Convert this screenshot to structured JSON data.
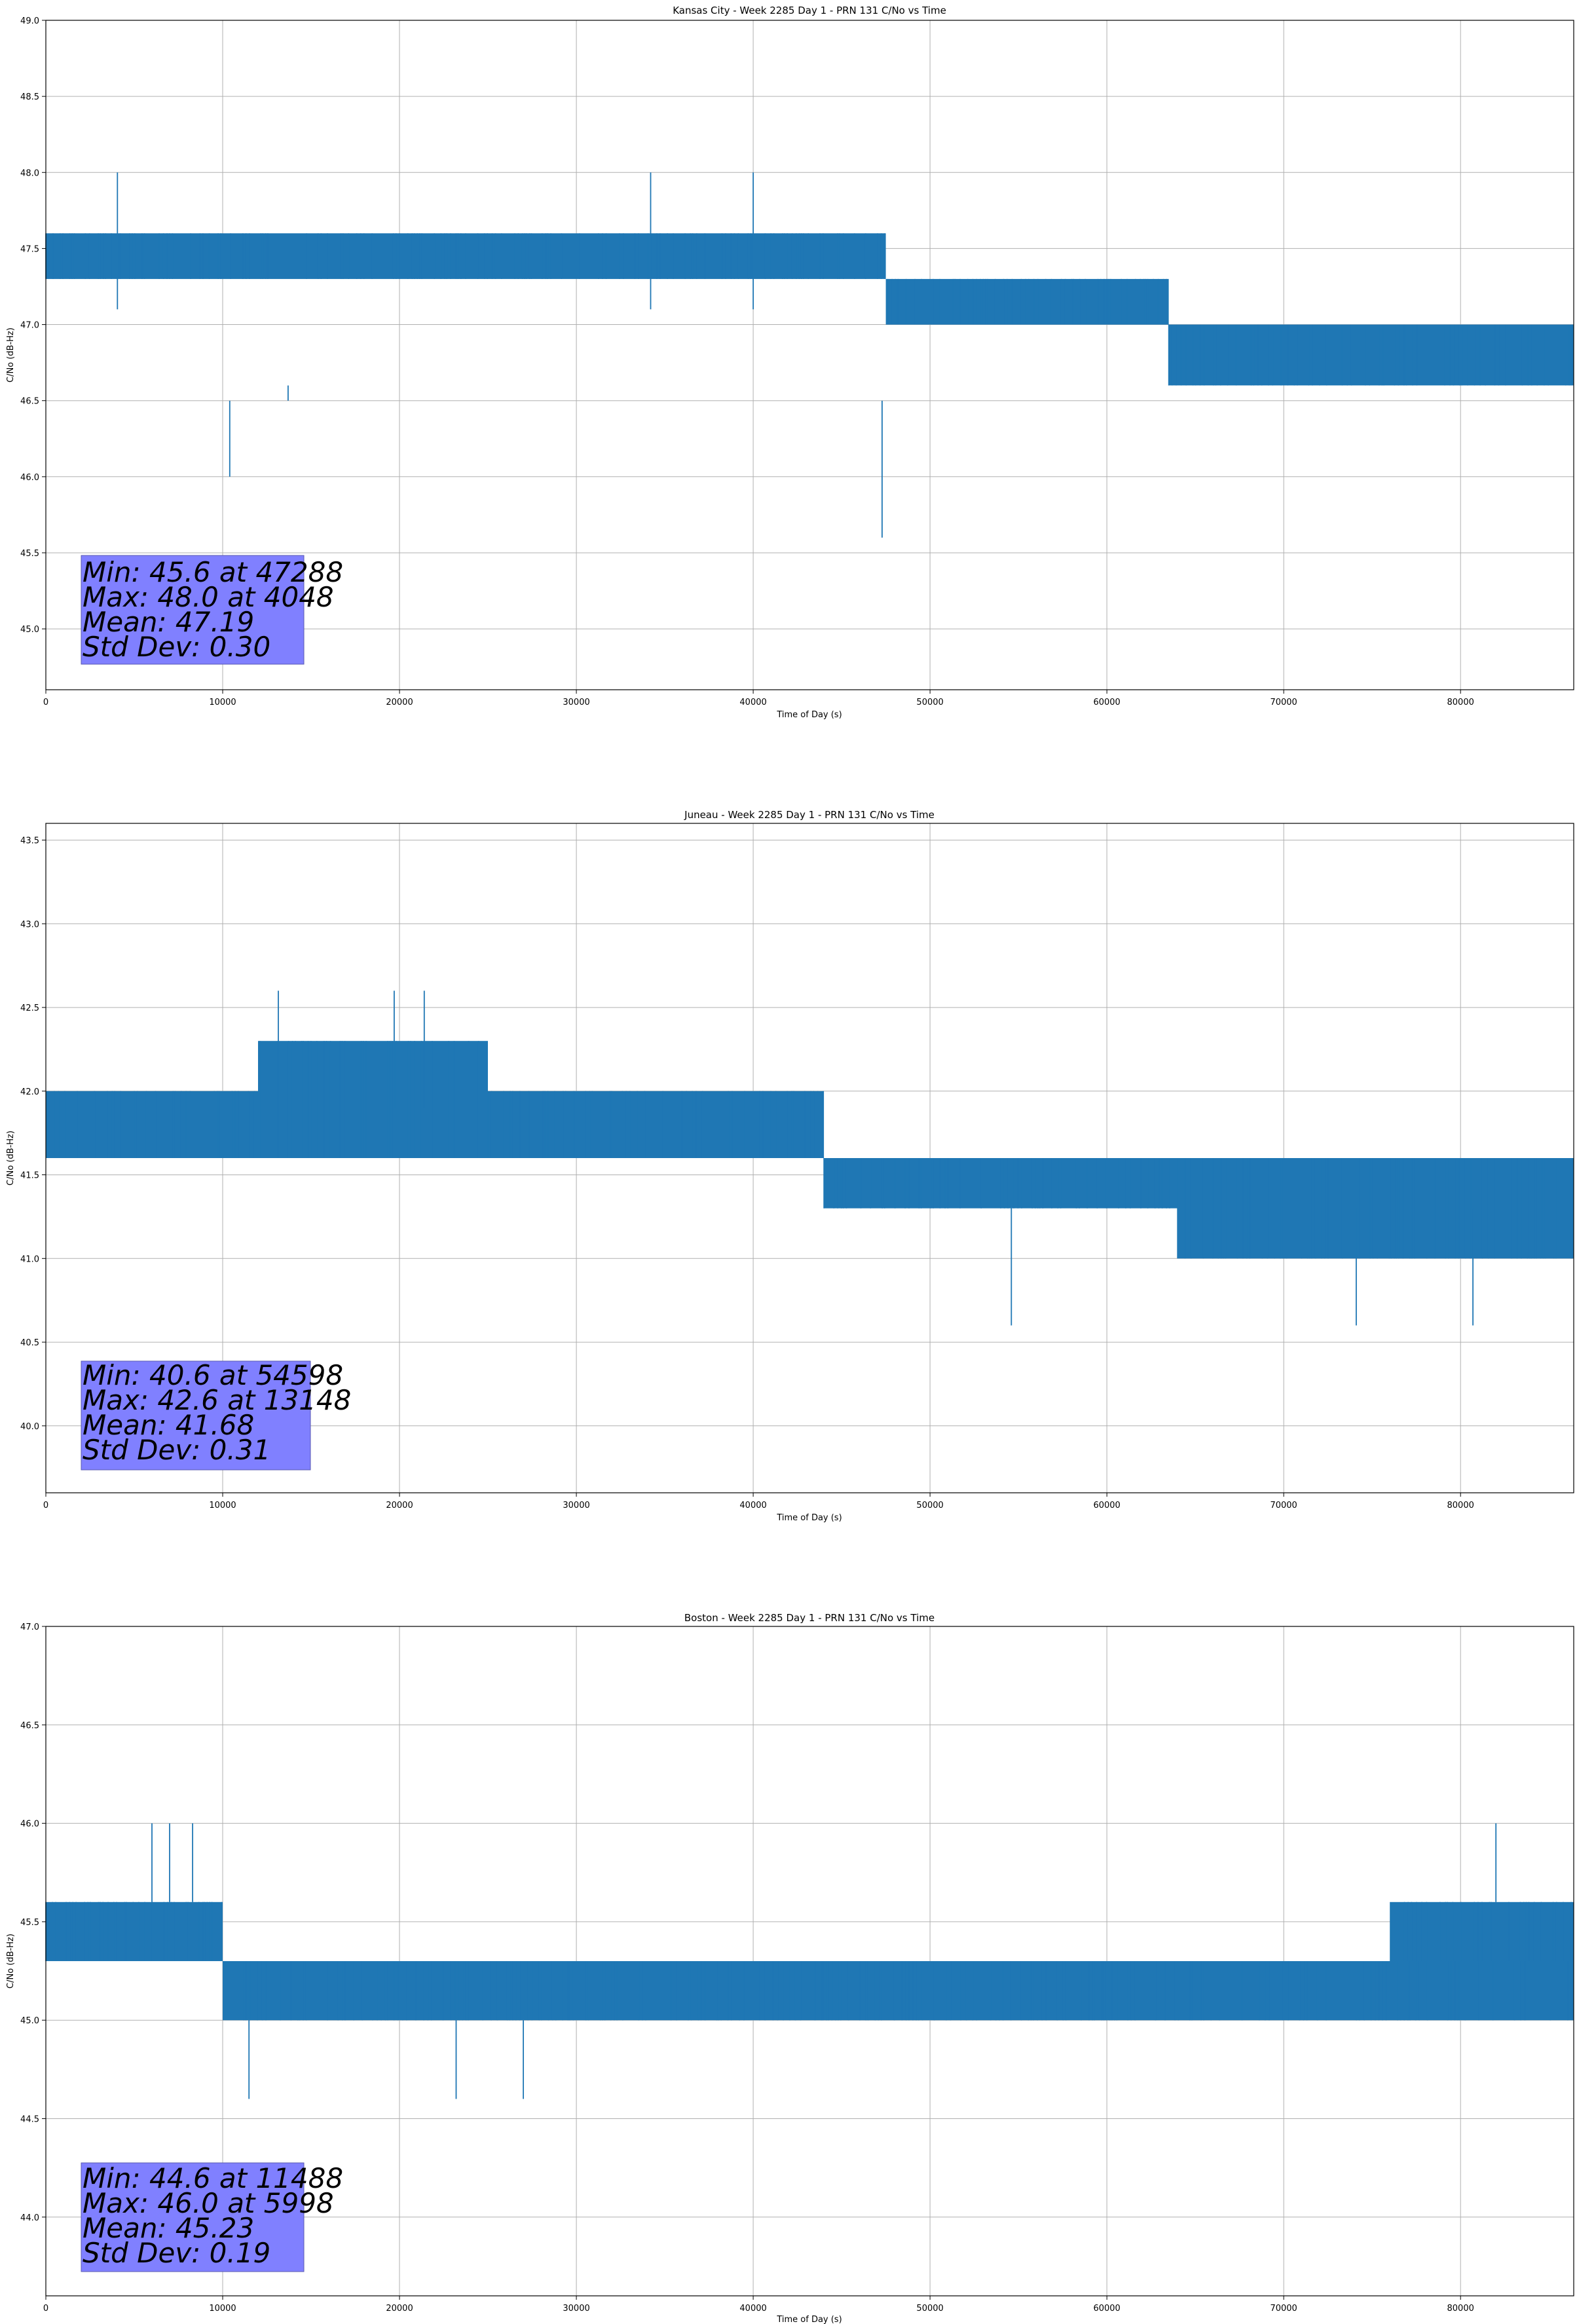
{
  "chart_data": [
    {
      "type": "line",
      "title": "Kansas City - Week 2285 Day 1 - PRN 131 C/No vs Time",
      "xlabel": "Time of Day (s)",
      "ylabel": "C/No (dB-Hz)",
      "xlim": [
        0,
        86400
      ],
      "ylim": [
        44.6,
        49.0
      ],
      "xticks": [
        0,
        10000,
        20000,
        30000,
        40000,
        50000,
        60000,
        70000,
        80000
      ],
      "yticks": [
        45.0,
        45.5,
        46.0,
        46.5,
        47.0,
        47.5,
        48.0,
        48.5,
        49.0
      ],
      "grid": true,
      "series_color": "#1f77b4",
      "series": [
        {
          "name": "C/No",
          "segments": [
            {
              "x": [
                0,
                10000
              ],
              "levels": [
                47.3,
                47.6
              ]
            },
            {
              "x": [
                10000,
                47500
              ],
              "levels": [
                47.3,
                47.6
              ]
            },
            {
              "x": [
                47500,
                63500
              ],
              "levels": [
                47.0,
                47.3
              ]
            },
            {
              "x": [
                63500,
                86400
              ],
              "levels": [
                46.6,
                47.0
              ]
            }
          ],
          "events": [
            {
              "x": 10400,
              "y": 46.0
            },
            {
              "x": 13700,
              "y": 46.6
            },
            {
              "x": 47288,
              "y": 45.6
            },
            {
              "x": 4048,
              "y": 48.0
            },
            {
              "x": 34200,
              "y": 48.0
            },
            {
              "x": 40000,
              "y": 48.0
            }
          ]
        }
      ],
      "stats": {
        "min": "Min: 45.6 at 47288",
        "max": "Max: 48.0 at 4048",
        "mean": "Mean: 47.19",
        "std": "Std Dev: 0.30"
      }
    },
    {
      "type": "line",
      "title": "Juneau - Week 2285 Day 1 - PRN 131 C/No vs Time",
      "xlabel": "Time of Day (s)",
      "ylabel": "C/No (dB-Hz)",
      "xlim": [
        0,
        86400
      ],
      "ylim": [
        39.6,
        43.6
      ],
      "xticks": [
        0,
        10000,
        20000,
        30000,
        40000,
        50000,
        60000,
        70000,
        80000
      ],
      "yticks": [
        40.0,
        40.5,
        41.0,
        41.5,
        42.0,
        42.5,
        43.0,
        43.5
      ],
      "grid": true,
      "series_color": "#1f77b4",
      "series": [
        {
          "name": "C/No",
          "segments": [
            {
              "x": [
                0,
                12000
              ],
              "levels": [
                41.6,
                42.0
              ]
            },
            {
              "x": [
                12000,
                25000
              ],
              "levels": [
                41.6,
                42.3
              ]
            },
            {
              "x": [
                25000,
                44000
              ],
              "levels": [
                41.6,
                42.0
              ]
            },
            {
              "x": [
                44000,
                64000
              ],
              "levels": [
                41.3,
                41.6
              ]
            },
            {
              "x": [
                64000,
                86400
              ],
              "levels": [
                41.0,
                41.6
              ]
            }
          ],
          "events": [
            {
              "x": 54598,
              "y": 40.6
            },
            {
              "x": 74100,
              "y": 40.6
            },
            {
              "x": 80700,
              "y": 40.6
            },
            {
              "x": 13148,
              "y": 42.6
            },
            {
              "x": 19700,
              "y": 42.6
            },
            {
              "x": 21400,
              "y": 42.6
            }
          ]
        }
      ],
      "stats": {
        "min": "Min: 40.6 at 54598",
        "max": "Max: 42.6 at 13148",
        "mean": "Mean: 41.68",
        "std": "Std Dev: 0.31"
      }
    },
    {
      "type": "line",
      "title": "Boston - Week 2285 Day 1 - PRN 131 C/No vs Time",
      "xlabel": "Time of Day (s)",
      "ylabel": "C/No (dB-Hz)",
      "xlim": [
        0,
        86400
      ],
      "ylim": [
        43.6,
        47.0
      ],
      "xticks": [
        0,
        10000,
        20000,
        30000,
        40000,
        50000,
        60000,
        70000,
        80000
      ],
      "yticks": [
        44.0,
        44.5,
        45.0,
        45.5,
        46.0,
        46.5,
        47.0
      ],
      "grid": true,
      "series_color": "#1f77b4",
      "series": [
        {
          "name": "C/No",
          "segments": [
            {
              "x": [
                0,
                10000
              ],
              "levels": [
                45.3,
                45.6
              ]
            },
            {
              "x": [
                10000,
                86400
              ],
              "levels": [
                45.0,
                45.3
              ]
            },
            {
              "x": [
                76000,
                86400
              ],
              "levels": [
                45.3,
                45.6
              ]
            }
          ],
          "events": [
            {
              "x": 5998,
              "y": 46.0
            },
            {
              "x": 7000,
              "y": 46.0
            },
            {
              "x": 8300,
              "y": 46.0
            },
            {
              "x": 82000,
              "y": 46.0
            },
            {
              "x": 11488,
              "y": 44.6
            },
            {
              "x": 23200,
              "y": 44.6
            },
            {
              "x": 27000,
              "y": 44.6
            }
          ]
        }
      ],
      "stats": {
        "min": "Min: 44.6 at 11488",
        "max": "Max: 46.0 at 5998",
        "mean": "Mean: 45.23",
        "std": "Std Dev: 0.19"
      }
    }
  ]
}
